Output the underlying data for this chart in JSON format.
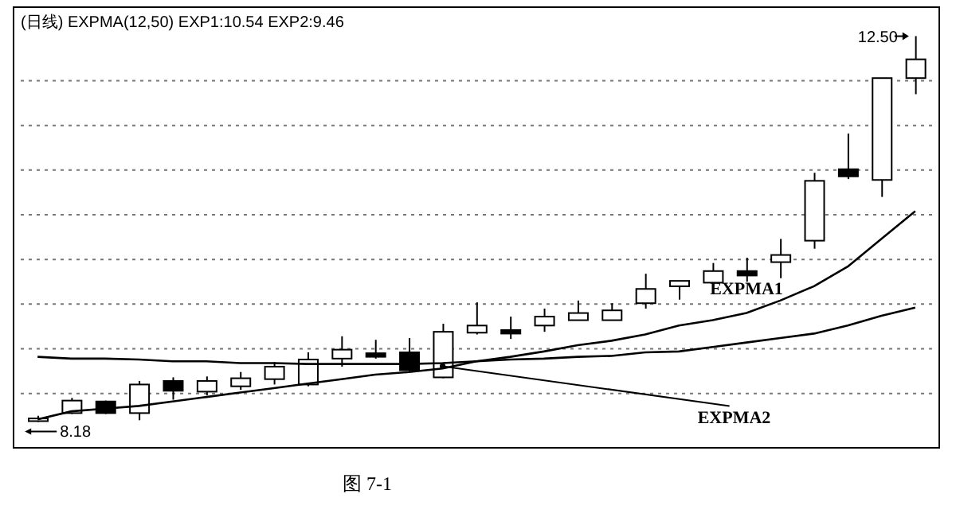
{
  "chart_data": {
    "type": "candlestick",
    "title": "(日线) EXPMA(12,50) EXP1:10.54 EXP2:9.46",
    "categories": [
      null,
      null,
      null,
      null,
      null,
      null,
      null,
      null,
      null,
      null,
      null,
      null,
      null,
      null,
      null,
      null,
      null,
      null,
      null,
      null,
      null,
      null,
      null,
      null,
      null,
      null,
      null
    ],
    "color": "#000000",
    "ohlc": [
      [
        8.19,
        8.25,
        8.18,
        8.22
      ],
      [
        8.28,
        8.45,
        8.27,
        8.42
      ],
      [
        8.41,
        8.42,
        8.27,
        8.28
      ],
      [
        8.28,
        8.64,
        8.2,
        8.6
      ],
      [
        8.64,
        8.68,
        8.43,
        8.53
      ],
      [
        8.52,
        8.69,
        8.48,
        8.64
      ],
      [
        8.58,
        8.74,
        8.54,
        8.67
      ],
      [
        8.66,
        8.85,
        8.6,
        8.8
      ],
      [
        8.6,
        8.96,
        8.58,
        8.88
      ],
      [
        8.89,
        9.14,
        8.8,
        8.99
      ],
      [
        8.95,
        9.1,
        8.89,
        8.91
      ],
      [
        8.96,
        9.12,
        8.74,
        8.76
      ],
      [
        8.68,
        9.28,
        8.67,
        9.19
      ],
      [
        9.18,
        9.52,
        9.16,
        9.26
      ],
      [
        9.21,
        9.36,
        9.11,
        9.17
      ],
      [
        9.26,
        9.45,
        9.19,
        9.36
      ],
      [
        9.32,
        9.54,
        9.32,
        9.4
      ],
      [
        9.32,
        9.51,
        9.32,
        9.43
      ],
      [
        9.51,
        9.84,
        9.45,
        9.67
      ],
      [
        9.7,
        9.76,
        9.55,
        9.76
      ],
      [
        9.74,
        9.96,
        9.7,
        9.87
      ],
      [
        9.87,
        10.02,
        9.75,
        9.82
      ],
      [
        9.97,
        10.23,
        9.79,
        10.05
      ],
      [
        10.21,
        10.97,
        10.12,
        10.88
      ],
      [
        11.01,
        11.41,
        10.9,
        10.93
      ],
      [
        10.89,
        12.03,
        10.7,
        12.03
      ],
      [
        12.03,
        12.5,
        11.85,
        12.24
      ]
    ],
    "series": [
      {
        "name": "EXPMA1",
        "type": "line",
        "color": "#000000",
        "values": [
          8.21,
          8.3,
          8.33,
          8.36,
          8.41,
          8.46,
          8.51,
          8.56,
          8.61,
          8.66,
          8.71,
          8.74,
          8.78,
          8.86,
          8.91,
          8.97,
          9.04,
          9.09,
          9.16,
          9.26,
          9.32,
          9.4,
          9.54,
          9.7,
          9.92,
          10.23,
          10.54
        ]
      },
      {
        "name": "EXPMA2",
        "type": "line",
        "color": "#000000",
        "values": [
          8.91,
          8.89,
          8.89,
          8.88,
          8.86,
          8.86,
          8.84,
          8.84,
          8.83,
          8.83,
          8.83,
          8.83,
          8.84,
          8.86,
          8.88,
          8.89,
          8.91,
          8.92,
          8.96,
          8.97,
          9.02,
          9.07,
          9.12,
          9.17,
          9.26,
          9.37,
          9.46
        ]
      }
    ],
    "yticks": [
      {
        "value": 8.5,
        "label": null
      },
      {
        "value": 9,
        "label": null
      },
      {
        "value": 9.5,
        "label": null
      },
      {
        "value": 10,
        "label": null
      },
      {
        "value": 10.5,
        "label": null
      },
      {
        "value": 11,
        "label": null
      },
      {
        "value": 11.5,
        "label": null
      },
      {
        "value": 12,
        "label": null
      }
    ],
    "grid": "y",
    "tick_labels": false,
    "marker": "none",
    "line_style": "solid",
    "annotations": [
      "12.50",
      "8.18",
      "图 7-1"
    ]
  }
}
